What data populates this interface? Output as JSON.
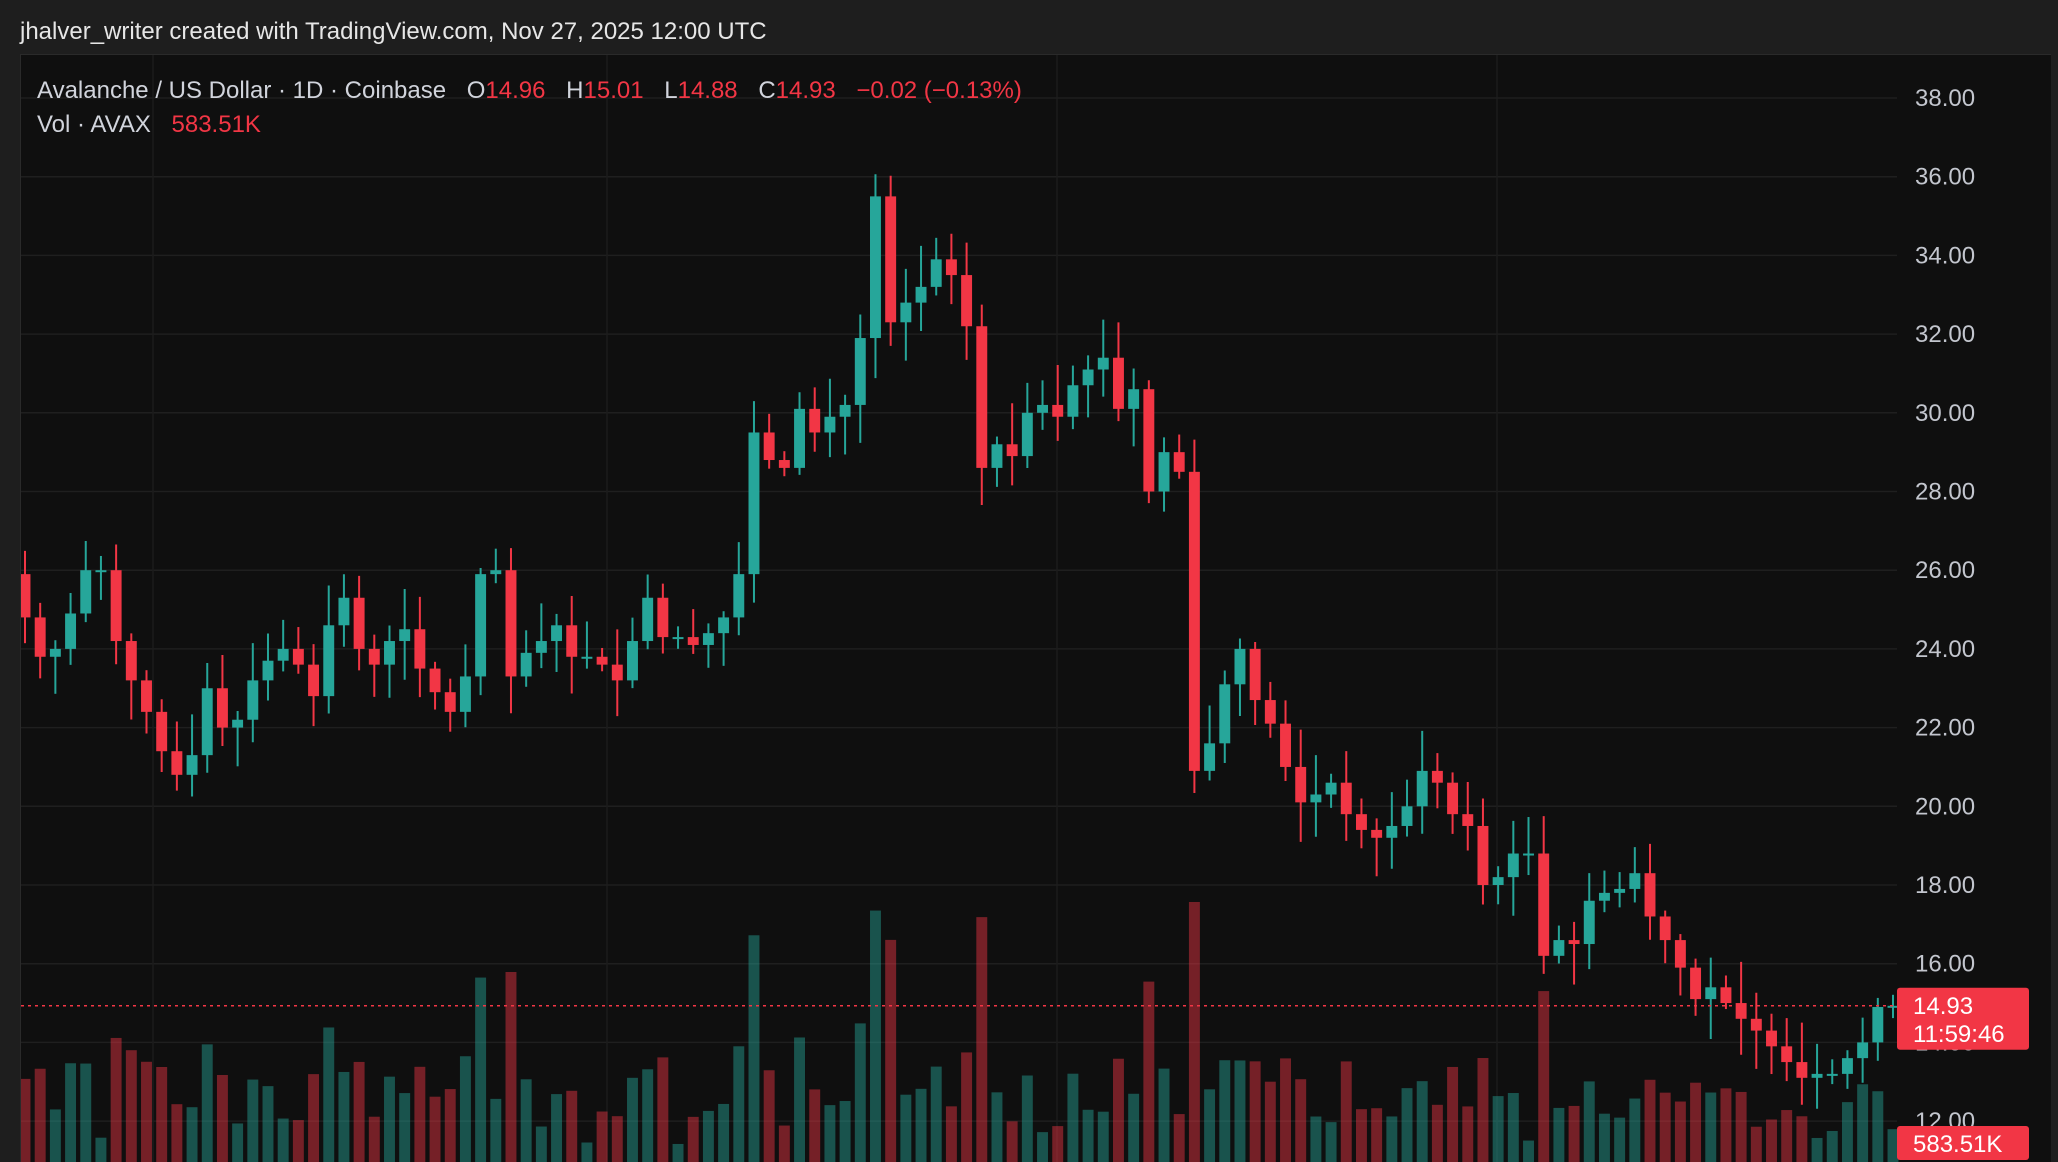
{
  "header": {
    "credit": "jhalver_writer created with TradingView.com, Nov 27, 2025 12:00 UTC"
  },
  "legend": {
    "symbol": "Avalanche / US Dollar · 1D · Coinbase",
    "o_label": "O",
    "o_value": "14.96",
    "h_label": "H",
    "h_value": "15.01",
    "l_label": "L",
    "l_value": "14.88",
    "c_label": "C",
    "c_value": "14.93",
    "change": "−0.02 (−0.13%)",
    "vol_label": "Vol · AVAX",
    "vol_value": "583.51K"
  },
  "price_tag": {
    "price": "14.93",
    "countdown": "11:59:46"
  },
  "volume_tag": "583.51K",
  "colors": {
    "up": "#26a69a",
    "down": "#f23645",
    "background": "#0f0f0f",
    "grid": "#1f1f1f"
  },
  "chart_data": {
    "type": "candlestick",
    "title": "Avalanche / US Dollar · 1D · Coinbase",
    "interval": "1D",
    "y_axis_ticks": [
      "12.00",
      "14.00",
      "16.00",
      "18.00",
      "20.00",
      "22.00",
      "24.00",
      "26.00",
      "28.00",
      "30.00",
      "32.00",
      "34.00",
      "36.00",
      "38.00"
    ],
    "ylim": [
      10.5,
      40
    ],
    "grid": true,
    "last_price": 14.93,
    "closes": [
      24.8,
      23.8,
      24.0,
      24.9,
      26.0,
      26.0,
      24.2,
      23.2,
      22.4,
      21.4,
      20.8,
      21.3,
      23.0,
      22.0,
      22.2,
      23.2,
      23.7,
      24.0,
      23.6,
      22.8,
      24.6,
      25.3,
      24.0,
      23.6,
      24.2,
      24.5,
      23.5,
      22.9,
      22.4,
      23.3,
      25.9,
      26.0,
      23.3,
      23.9,
      24.2,
      24.6,
      23.8,
      23.8,
      23.6,
      23.2,
      24.2,
      25.3,
      24.3,
      24.3,
      24.1,
      24.4,
      24.8,
      25.9,
      29.5,
      28.8,
      28.6,
      30.1,
      29.5,
      29.9,
      30.2,
      31.9,
      35.5,
      32.3,
      32.8,
      33.2,
      33.9,
      33.5,
      32.2,
      28.6,
      29.2,
      28.9,
      30.0,
      30.2,
      29.9,
      30.7,
      31.1,
      31.4,
      30.1,
      30.6,
      28.0,
      29.0,
      28.5,
      20.9,
      21.6,
      23.1,
      24.0,
      22.7,
      22.1,
      21.0,
      20.1,
      20.3,
      20.6,
      19.8,
      19.4,
      19.2,
      19.5,
      20.0,
      20.9,
      20.6,
      19.8,
      19.5,
      18.0,
      18.2,
      18.8,
      18.8,
      16.2,
      16.6,
      16.5,
      17.6,
      17.8,
      17.9,
      18.3,
      17.2,
      16.6,
      15.9,
      15.1,
      15.4,
      15.0,
      14.6,
      14.3,
      13.9,
      13.5,
      13.1,
      13.2,
      13.2,
      13.6,
      14.0,
      14.9,
      14.93
    ],
    "volume_note": "relative daily volume bars, last bar 583.51K"
  }
}
